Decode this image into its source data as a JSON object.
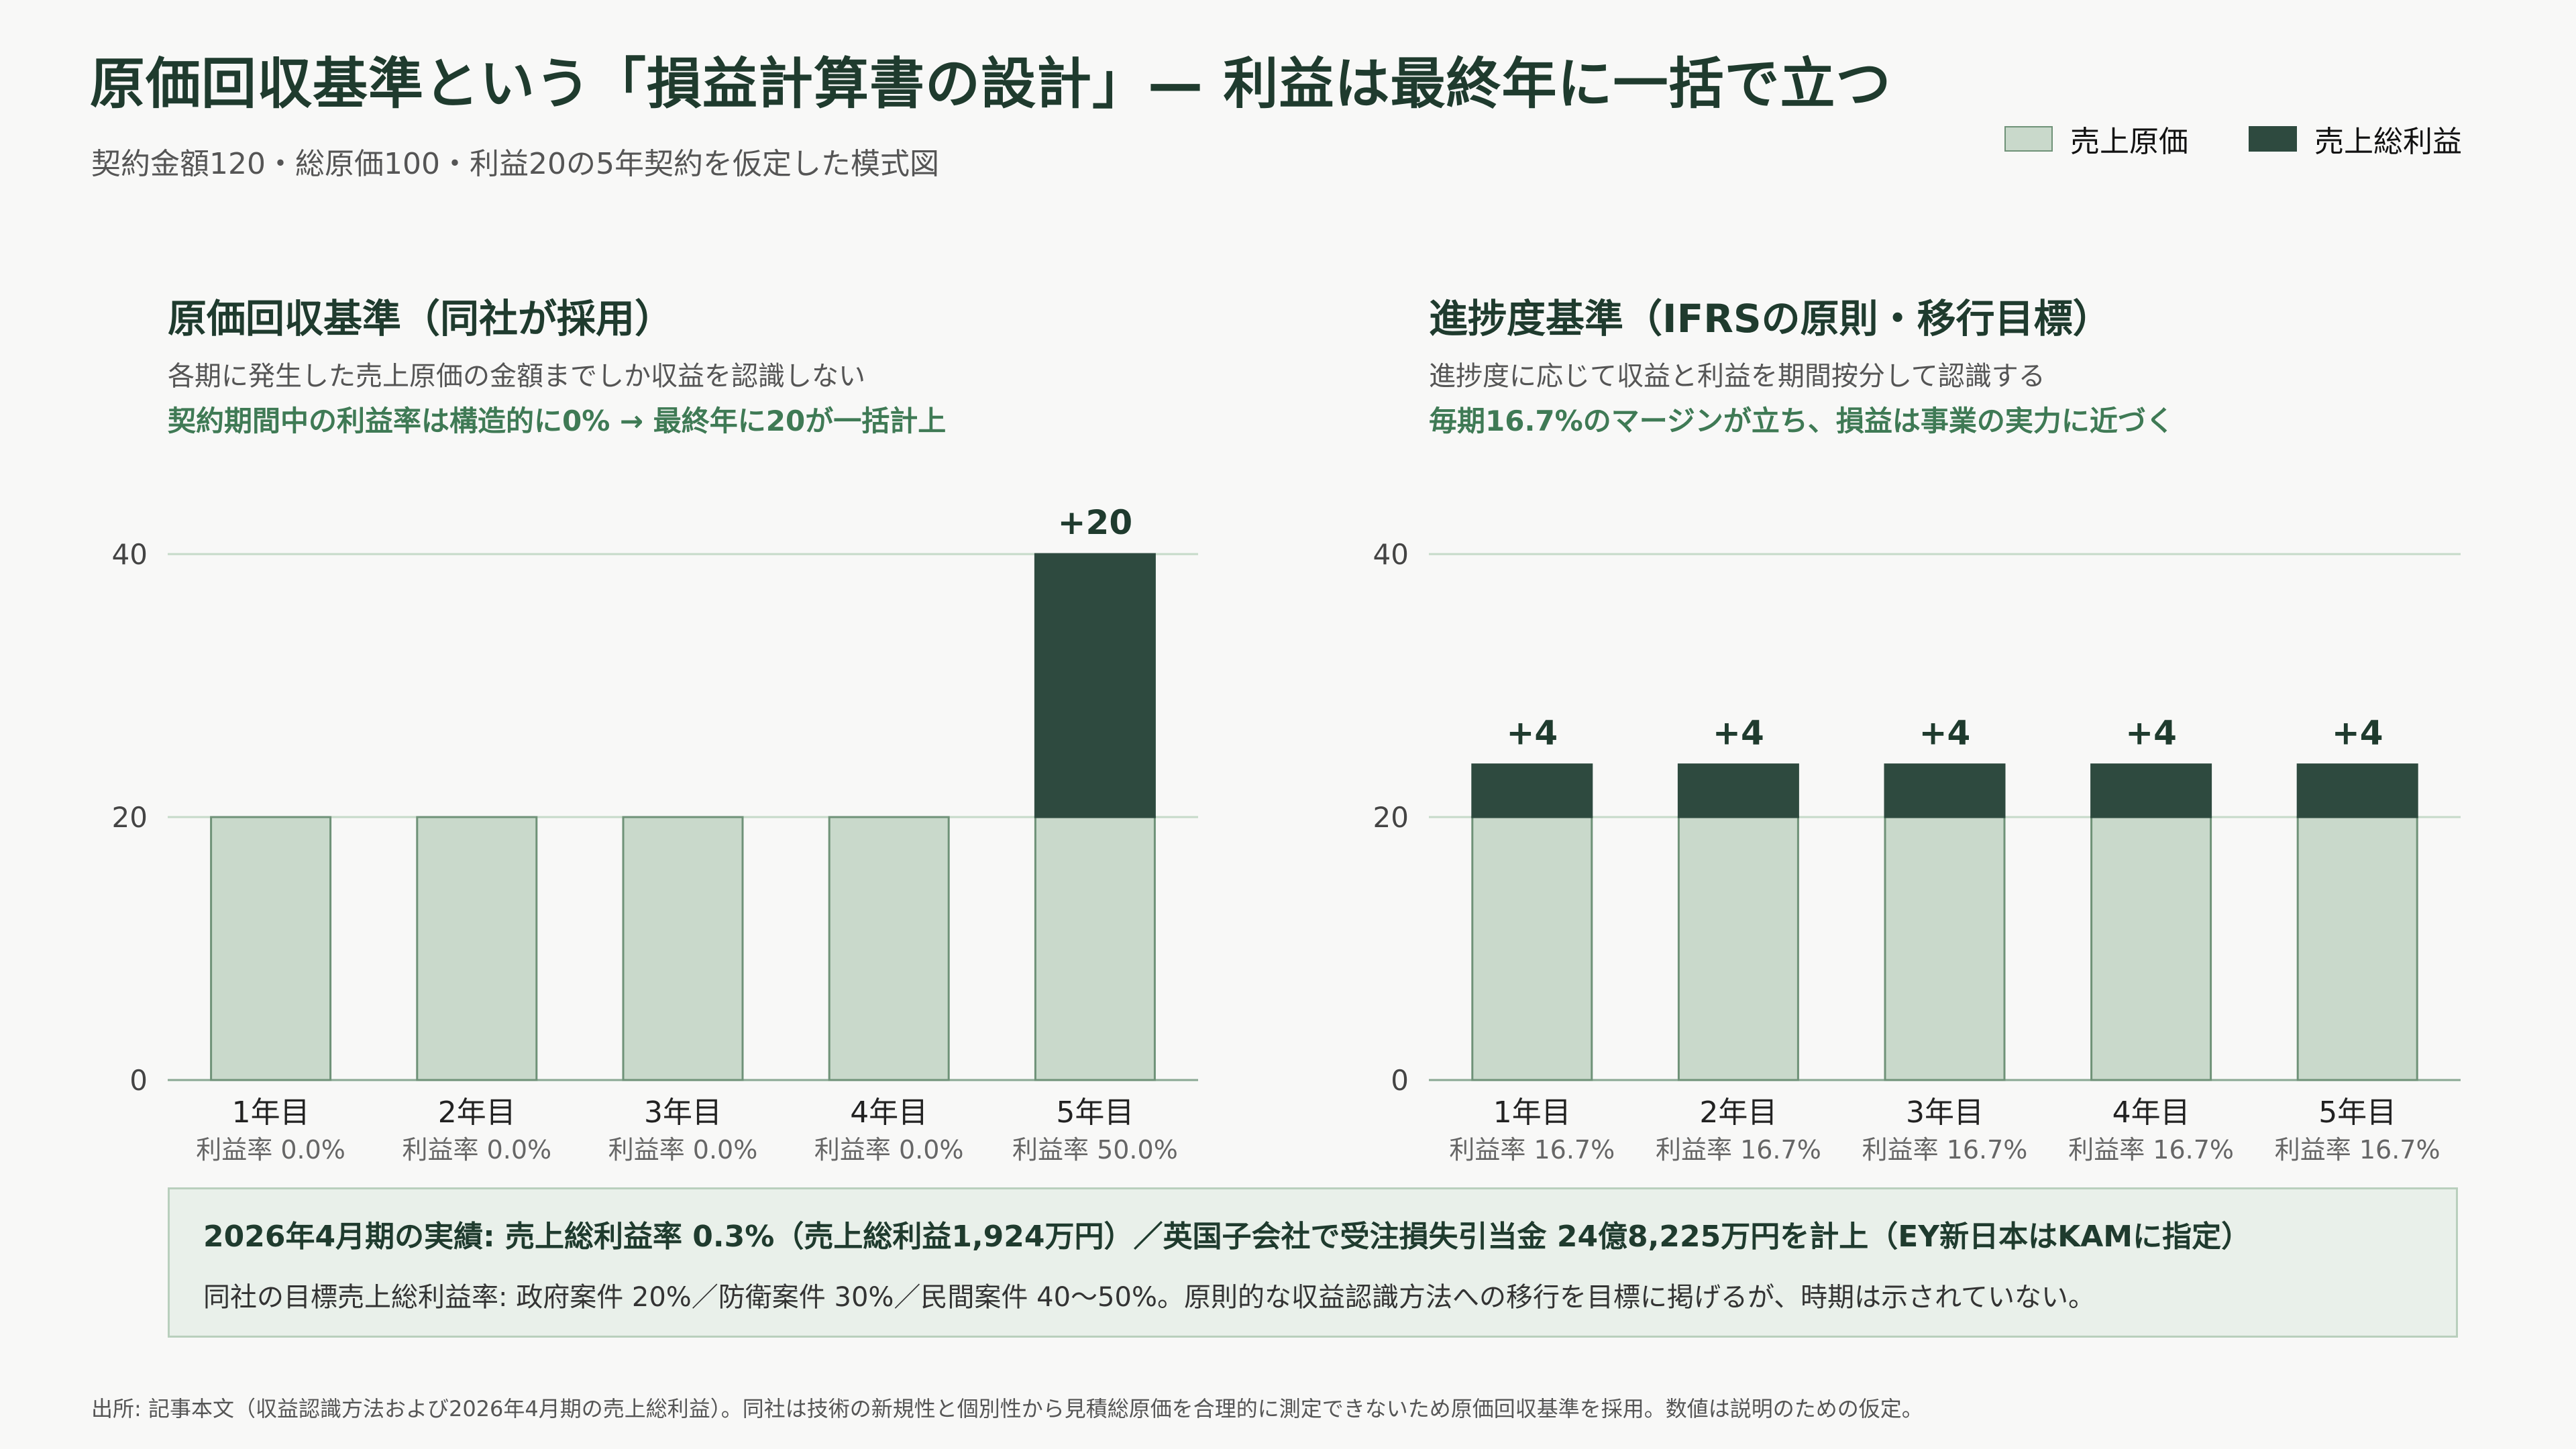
{
  "title": "原価回収基準という「損益計算書の設計」— 利益は最終年に一括で立つ",
  "subtitle": "契約金額120・総原価100・利益20の5年契約を仮定した模式図",
  "legend": {
    "cost": "売上原価",
    "profit": "売上総利益"
  },
  "colors": {
    "cost": "#c9d9cb",
    "cost_border": "#6f9278",
    "profit": "#2e4a3f",
    "grid": "#c6dac9",
    "axis": "#8aa893"
  },
  "panels": [
    {
      "title": "原価回収基準（同社が採用）",
      "sub": "各期に発生した売上原価の金額までしか収益を認識しない",
      "note": "契約期間中の利益率は構造的に0% → 最終年に20が一括計上"
    },
    {
      "title": "進捗度基準（IFRSの原則・移行目標）",
      "sub": "進捗度に応じて収益と利益を期間按分して認識する",
      "note": "毎期16.7%のマージンが立ち、損益は事業の実力に近づく"
    }
  ],
  "chart_data": [
    {
      "type": "bar",
      "stacked": true,
      "categories": [
        "1年目",
        "2年目",
        "3年目",
        "4年目",
        "5年目"
      ],
      "margin_labels": [
        "利益率 0.0%",
        "利益率 0.0%",
        "利益率 0.0%",
        "利益率 0.0%",
        "利益率 50.0%"
      ],
      "series": [
        {
          "name": "売上原価",
          "values": [
            20,
            20,
            20,
            20,
            20
          ]
        },
        {
          "name": "売上総利益",
          "values": [
            0,
            0,
            0,
            0,
            20
          ]
        }
      ],
      "top_labels": [
        "",
        "",
        "",
        "",
        "+20"
      ],
      "ylim": [
        0,
        40
      ],
      "yticks": [
        0,
        20,
        40
      ],
      "grid": true
    },
    {
      "type": "bar",
      "stacked": true,
      "categories": [
        "1年目",
        "2年目",
        "3年目",
        "4年目",
        "5年目"
      ],
      "margin_labels": [
        "利益率 16.7%",
        "利益率 16.7%",
        "利益率 16.7%",
        "利益率 16.7%",
        "利益率 16.7%"
      ],
      "series": [
        {
          "name": "売上原価",
          "values": [
            20,
            20,
            20,
            20,
            20
          ]
        },
        {
          "name": "売上総利益",
          "values": [
            4,
            4,
            4,
            4,
            4
          ]
        }
      ],
      "top_labels": [
        "+4",
        "+4",
        "+4",
        "+4",
        "+4"
      ],
      "ylim": [
        0,
        40
      ],
      "yticks": [
        0,
        20,
        40
      ],
      "grid": true
    }
  ],
  "callout": {
    "line1": "2026年4月期の実績: 売上総利益率 0.3%（売上総利益1,924万円）／英国子会社で受注損失引当金 24億8,225万円を計上（EY新日本はKAMに指定）",
    "line2": "同社の目標売上総利益率: 政府案件 20%／防衛案件 30%／民間案件 40〜50%。原則的な収益認識方法への移行を目標に掲げるが、時期は示されていない。"
  },
  "source": "出所: 記事本文（収益認識方法および2026年4月期の売上総利益）。同社は技術の新規性と個別性から見積総原価を合理的に測定できないため原価回収基準を採用。数値は説明のための仮定。"
}
